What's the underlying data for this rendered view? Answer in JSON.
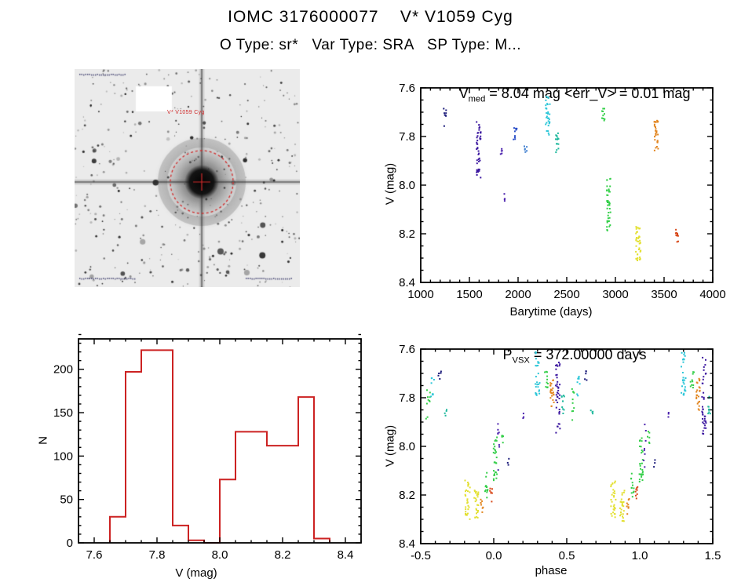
{
  "header": {
    "title": "IOMC 3176000077    V* V1059 Cyg",
    "subtitle": "O Type: sr*   Var Type: SRA   SP Type: M..."
  },
  "finder": {
    "star_label": "V* V1059 Cyg",
    "marker_color": "#d22b2b"
  },
  "chart_data": [
    {
      "id": "lightcurve",
      "type": "scatter",
      "title": {
        "pre": "V",
        "sub": "med",
        "post": " = 8.04 mag <err_V> = 0.01 mag"
      },
      "xlabel": "Barytime (days)",
      "ylabel": "V (mag)",
      "xlim": [
        1000,
        4000
      ],
      "ylim_bottom_top": [
        8.4,
        7.6
      ],
      "xticks": {
        "values": [
          1000,
          1500,
          2000,
          2500,
          3000,
          3500,
          4000
        ],
        "labels": [
          "1000",
          "1500",
          "2000",
          "2500",
          "3000",
          "3500",
          "4000"
        ],
        "minor_step": 100
      },
      "yticks": {
        "values": [
          7.6,
          7.8,
          8.0,
          8.2,
          8.4
        ],
        "labels": [
          "7.6",
          "7.8",
          "8.0",
          "8.2",
          "8.4"
        ],
        "minor_step": 0.05
      },
      "clusters": [
        {
          "x": 1245,
          "dx": 35,
          "vmin": 7.68,
          "vmax": 7.77,
          "n": 8,
          "color": "#1b1b7a"
        },
        {
          "x": 1595,
          "dx": 45,
          "vmin": 7.74,
          "vmax": 7.97,
          "n": 45,
          "color": "#3c18a0"
        },
        {
          "x": 1830,
          "dx": 25,
          "vmin": 7.84,
          "vmax": 7.88,
          "n": 5,
          "color": "#4a21ad"
        },
        {
          "x": 1855,
          "dx": 20,
          "vmin": 8.03,
          "vmax": 8.07,
          "n": 4,
          "color": "#4a21ad"
        },
        {
          "x": 1965,
          "dx": 45,
          "vmin": 7.76,
          "vmax": 7.82,
          "n": 10,
          "color": "#2b4fc8"
        },
        {
          "x": 2075,
          "dx": 30,
          "vmin": 7.84,
          "vmax": 7.88,
          "n": 6,
          "color": "#3f7fd0"
        },
        {
          "x": 2305,
          "dx": 45,
          "vmin": 7.63,
          "vmax": 7.8,
          "n": 32,
          "color": "#2cc6d8"
        },
        {
          "x": 2405,
          "dx": 40,
          "vmin": 7.78,
          "vmax": 7.87,
          "n": 14,
          "color": "#1fb89d"
        },
        {
          "x": 2875,
          "dx": 30,
          "vmin": 7.68,
          "vmax": 7.74,
          "n": 10,
          "color": "#35cf4a"
        },
        {
          "x": 2930,
          "dx": 40,
          "vmin": 7.97,
          "vmax": 8.19,
          "n": 40,
          "color": "#35cf4a"
        },
        {
          "x": 3235,
          "dx": 50,
          "vmin": 8.17,
          "vmax": 8.31,
          "n": 40,
          "color": "#e3e032"
        },
        {
          "x": 3420,
          "dx": 40,
          "vmin": 7.72,
          "vmax": 7.86,
          "n": 28,
          "color": "#e2851f"
        },
        {
          "x": 3635,
          "dx": 30,
          "vmin": 8.17,
          "vmax": 8.24,
          "n": 10,
          "color": "#d8491a"
        }
      ]
    },
    {
      "id": "histogram",
      "type": "bar",
      "xlabel": "V (mag)",
      "ylabel": "N",
      "xlim": [
        7.55,
        8.45
      ],
      "ylim_bottom_top": [
        0,
        235
      ],
      "xticks": {
        "values": [
          7.6,
          7.8,
          8.0,
          8.2,
          8.4
        ],
        "labels": [
          "7.6",
          "7.8",
          "8.0",
          "8.2",
          "8.4"
        ],
        "minor_step": 0.05
      },
      "yticks": {
        "values": [
          0,
          50,
          100,
          150,
          200
        ],
        "labels": [
          "0",
          "50",
          "100",
          "150",
          "200"
        ],
        "minor_step": 10
      },
      "bin_width": 0.05,
      "color": "#cc2222",
      "bins": [
        {
          "x": 7.65,
          "n": 30
        },
        {
          "x": 7.7,
          "n": 197
        },
        {
          "x": 7.75,
          "n": 222
        },
        {
          "x": 7.8,
          "n": 222
        },
        {
          "x": 7.85,
          "n": 20
        },
        {
          "x": 7.9,
          "n": 3
        },
        {
          "x": 7.95,
          "n": 0
        },
        {
          "x": 8.0,
          "n": 73
        },
        {
          "x": 8.05,
          "n": 128
        },
        {
          "x": 8.1,
          "n": 128
        },
        {
          "x": 8.15,
          "n": 112
        },
        {
          "x": 8.2,
          "n": 112
        },
        {
          "x": 8.25,
          "n": 168
        },
        {
          "x": 8.3,
          "n": 5
        }
      ]
    },
    {
      "id": "phase",
      "type": "scatter",
      "title": {
        "pre": "P",
        "sub": "VSX",
        "post": " = 372.00000 days"
      },
      "xlabel": "phase",
      "ylabel": "V (mag)",
      "xlim": [
        -0.5,
        1.5
      ],
      "ylim_bottom_top": [
        8.4,
        7.6
      ],
      "xticks": {
        "values": [
          -0.5,
          0.0,
          0.5,
          1.0,
          1.5
        ],
        "labels": [
          "-0.5",
          "0.0",
          "0.5",
          "1.0",
          "1.5"
        ],
        "minor_step": 0.1
      },
      "yticks": {
        "values": [
          7.6,
          7.8,
          8.0,
          8.2,
          8.4
        ],
        "labels": [
          "7.6",
          "7.8",
          "8.0",
          "8.2",
          "8.4"
        ],
        "minor_step": 0.05
      },
      "duplicate_offset": 1.0,
      "clusters": [
        {
          "x": -0.45,
          "dx": 0.03,
          "vmin": 7.76,
          "vmax": 7.9,
          "n": 10,
          "color": "#35cf4a"
        },
        {
          "x": -0.42,
          "dx": 0.025,
          "vmin": 7.7,
          "vmax": 7.8,
          "n": 8,
          "color": "#2cc6d8"
        },
        {
          "x": -0.37,
          "dx": 0.02,
          "vmin": 7.68,
          "vmax": 7.74,
          "n": 5,
          "color": "#1b1b7a"
        },
        {
          "x": -0.33,
          "dx": 0.02,
          "vmin": 7.84,
          "vmax": 7.89,
          "n": 4,
          "color": "#1fb89d"
        },
        {
          "x": -0.18,
          "dx": 0.035,
          "vmin": 8.14,
          "vmax": 8.3,
          "n": 30,
          "color": "#e3e032"
        },
        {
          "x": -0.12,
          "dx": 0.03,
          "vmin": 8.18,
          "vmax": 8.31,
          "n": 26,
          "color": "#e3e032"
        },
        {
          "x": -0.08,
          "dx": 0.02,
          "vmin": 8.21,
          "vmax": 8.28,
          "n": 8,
          "color": "#e2851f"
        },
        {
          "x": -0.05,
          "dx": 0.02,
          "vmin": 8.1,
          "vmax": 8.22,
          "n": 12,
          "color": "#35cf4a"
        },
        {
          "x": -0.02,
          "dx": 0.02,
          "vmin": 8.16,
          "vmax": 8.23,
          "n": 8,
          "color": "#d8491a"
        },
        {
          "x": 0.01,
          "dx": 0.025,
          "vmin": 7.96,
          "vmax": 8.15,
          "n": 28,
          "color": "#35cf4a"
        },
        {
          "x": 0.035,
          "dx": 0.015,
          "vmin": 7.9,
          "vmax": 8.1,
          "n": 8,
          "color": "#4a21ad"
        },
        {
          "x": 0.06,
          "dx": 0.015,
          "vmin": 7.93,
          "vmax": 7.99,
          "n": 6,
          "color": "#35cf4a"
        },
        {
          "x": 0.1,
          "dx": 0.01,
          "vmin": 8.05,
          "vmax": 8.09,
          "n": 3,
          "color": "#1b1b7a"
        },
        {
          "x": 0.2,
          "dx": 0.01,
          "vmin": 7.86,
          "vmax": 7.89,
          "n": 3,
          "color": "#4a21ad"
        },
        {
          "x": 0.3,
          "dx": 0.03,
          "vmin": 7.61,
          "vmax": 7.79,
          "n": 26,
          "color": "#2cc6d8"
        },
        {
          "x": 0.36,
          "dx": 0.025,
          "vmin": 7.69,
          "vmax": 7.76,
          "n": 10,
          "color": "#35cf4a"
        },
        {
          "x": 0.4,
          "dx": 0.025,
          "vmin": 7.72,
          "vmax": 7.86,
          "n": 22,
          "color": "#e2851f"
        },
        {
          "x": 0.44,
          "dx": 0.03,
          "vmin": 7.62,
          "vmax": 7.95,
          "n": 38,
          "color": "#3c18a0"
        },
        {
          "x": 0.475,
          "dx": 0.02,
          "vmin": 7.79,
          "vmax": 7.87,
          "n": 10,
          "color": "#1fb89d"
        }
      ]
    }
  ]
}
